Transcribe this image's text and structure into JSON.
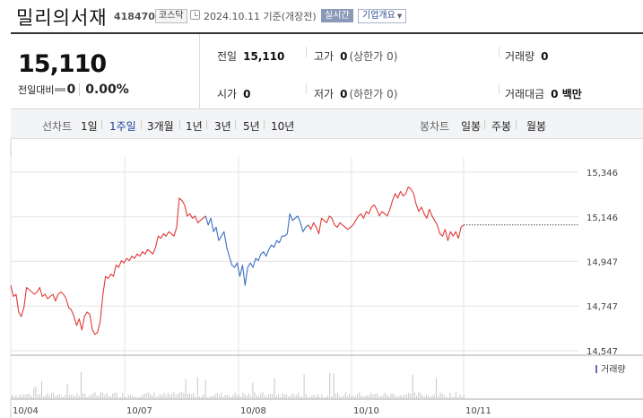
{
  "header": {
    "company_name": "밀리의서재",
    "code": "418470",
    "market": "코스닥",
    "date_text": "2024.10.11  기준(개장전)",
    "realtime_label": "실시간",
    "company_info_label": "기업개요"
  },
  "price": {
    "current": "15,110",
    "change_label": "전일대비",
    "change_value": "0",
    "change_rate": "0.00%"
  },
  "stats": {
    "prev_close_label": "전일",
    "prev_close": "15,110",
    "high_label": "고가",
    "high": "0",
    "upper_limit": "(상한가 0)",
    "volume_label": "거래량",
    "volume": "0",
    "open_label": "시가",
    "open": "0",
    "low_label": "저가",
    "low": "0",
    "lower_limit": "(하한가 0)",
    "amount_label": "거래대금",
    "amount": "0 백만"
  },
  "periods": {
    "line_label": "선차트",
    "line_items": [
      "1일",
      "1주일",
      "3개월",
      "1년",
      "3년",
      "5년",
      "10년"
    ],
    "active": "1주일",
    "candle_label": "봉차트",
    "candle_items": [
      "일봉",
      "주봉",
      "월봉"
    ]
  },
  "colors": {
    "up": "#e03a3a",
    "down": "#3b6fc0",
    "grid": "#e3e3e3",
    "volume": "#c8c8c8",
    "accent": "#1d3f9c"
  },
  "chart_data": {
    "type": "line",
    "y_ticks": [
      "15,346",
      "15,146",
      "14,947",
      "14,747",
      "14,547"
    ],
    "y_tick_values": [
      15346,
      15146,
      14947,
      14747,
      14547
    ],
    "ylim": [
      14547,
      15346
    ],
    "x_ticks": [
      "10/04",
      "10/07",
      "10/08",
      "10/10",
      "10/11"
    ],
    "volume_legend": "거래량",
    "reference_price": 15110,
    "series": [
      {
        "values": [
          14840,
          14790,
          14800,
          14720,
          14700,
          14740,
          14830,
          14820,
          14810,
          14800,
          14810,
          14830,
          14790,
          14800,
          14780,
          14790,
          14800,
          14770,
          14800,
          14810,
          14800,
          14780,
          14740,
          14730,
          14700,
          14660,
          14690,
          14640,
          14700,
          14720,
          14710,
          14640,
          14620,
          14630,
          14680,
          14800,
          14880,
          14870,
          14890,
          14880,
          14930,
          14920,
          14950,
          14940,
          14960,
          14950,
          14970,
          14960,
          14980,
          14970,
          14990,
          14980,
          15000,
          14990,
          14980,
          15010,
          15060,
          15050,
          15070,
          15060,
          15080,
          15070,
          15060,
          15100,
          15230,
          15220,
          15200,
          15150,
          15160,
          15140,
          15150,
          15120,
          15130,
          15140,
          15150
        ]
      },
      {
        "values": [
          15150,
          15110,
          15140,
          15080,
          15100,
          15040,
          15060,
          15080,
          15010,
          14970,
          14930,
          14920,
          14940,
          14880,
          14930,
          14840,
          14920,
          14940,
          14920,
          14960,
          14950,
          14980,
          14990,
          14970,
          15000,
          15020,
          15010,
          15040,
          15030,
          15060,
          15060,
          15070,
          15160,
          15130,
          15140,
          15150,
          15120,
          15080,
          15100,
          15110
        ]
      },
      {
        "values": [
          15110,
          15090,
          15120,
          15100,
          15070,
          15140,
          15130,
          15120,
          15150,
          15140,
          15110,
          15100,
          15120,
          15110,
          15100,
          15090,
          15100,
          15110,
          15130,
          15150,
          15160,
          15140,
          15170,
          15160,
          15190,
          15200,
          15180,
          15150,
          15170,
          15160,
          15150,
          15180,
          15220,
          15250,
          15230,
          15260,
          15240,
          15250,
          15280,
          15270,
          15250,
          15200,
          15170,
          15190,
          15160,
          15140,
          15180,
          15150,
          15130,
          15110,
          15070,
          15060,
          15090,
          15040,
          15080,
          15060,
          15080,
          15050,
          15100,
          15110
        ]
      }
    ]
  }
}
